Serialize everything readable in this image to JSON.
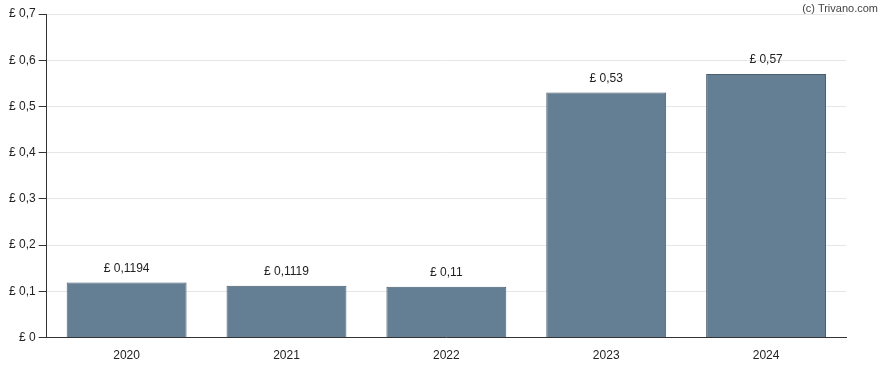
{
  "chart_data": {
    "type": "bar",
    "annotations": [
      "(c) Trivano.com"
    ],
    "categories": [
      "2020",
      "2021",
      "2022",
      "2023",
      "2024"
    ],
    "values": [
      0.1194,
      0.1119,
      0.11,
      0.53,
      0.57
    ],
    "value_labels": [
      "£ 0,1194",
      "£ 0,1119",
      "£ 0,11",
      "£ 0,53",
      "£ 0,57"
    ],
    "data_labels": true,
    "color": "#647f94",
    "ylim": [
      0,
      0.7
    ],
    "yticks": [
      {
        "value": 0,
        "label": "£ 0"
      },
      {
        "value": 0.1,
        "label": "£ 0,1"
      },
      {
        "value": 0.2,
        "label": "£ 0,2"
      },
      {
        "value": 0.3,
        "label": "£ 0,3"
      },
      {
        "value": 0.4,
        "label": "£ 0,4"
      },
      {
        "value": 0.5,
        "label": "£ 0,5"
      },
      {
        "value": 0.6,
        "label": "£ 0,6"
      },
      {
        "value": 0.7,
        "label": "£ 0,7"
      }
    ],
    "grid": true
  }
}
